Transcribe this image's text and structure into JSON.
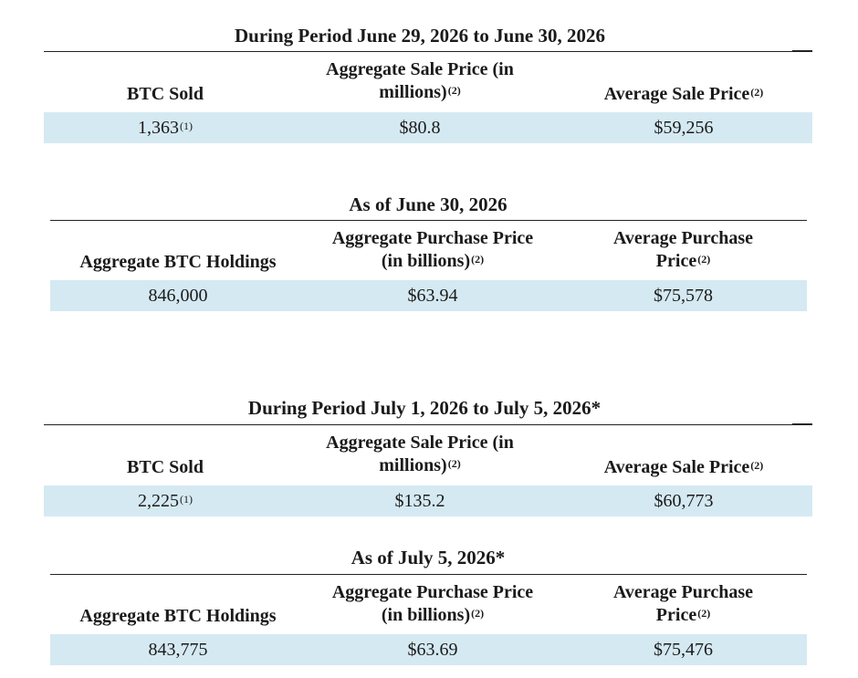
{
  "tables": [
    {
      "title": "During Period June 29, 2026 to June 30, 2026",
      "headers": [
        {
          "lines": [
            "BTC Sold"
          ],
          "note": ""
        },
        {
          "lines": [
            "Aggregate Sale Price (in",
            "millions)"
          ],
          "note": "(2)"
        },
        {
          "lines": [
            "Average Sale Price"
          ],
          "note": "(2)"
        }
      ],
      "values": [
        {
          "text": "1,363",
          "note": "(1)"
        },
        {
          "text": "$80.8",
          "note": ""
        },
        {
          "text": "$59,256",
          "note": ""
        }
      ]
    },
    {
      "title": "As of June 30, 2026",
      "headers": [
        {
          "lines": [
            "Aggregate BTC Holdings"
          ],
          "note": ""
        },
        {
          "lines": [
            "Aggregate Purchase Price",
            "(in billions)"
          ],
          "note": "(2)"
        },
        {
          "lines": [
            "Average Purchase",
            "Price"
          ],
          "note": "(2)"
        }
      ],
      "values": [
        {
          "text": "846,000",
          "note": ""
        },
        {
          "text": "$63.94",
          "note": ""
        },
        {
          "text": "$75,578",
          "note": ""
        }
      ]
    },
    {
      "title": "During Period July 1, 2026 to July 5, 2026*",
      "headers": [
        {
          "lines": [
            "BTC Sold"
          ],
          "note": ""
        },
        {
          "lines": [
            "Aggregate Sale Price (in",
            "millions)"
          ],
          "note": "(2)"
        },
        {
          "lines": [
            "Average Sale Price"
          ],
          "note": "(2)"
        }
      ],
      "values": [
        {
          "text": "2,225",
          "note": "(1)"
        },
        {
          "text": "$135.2",
          "note": ""
        },
        {
          "text": "$60,773",
          "note": ""
        }
      ]
    },
    {
      "title": "As of July 5, 2026*",
      "headers": [
        {
          "lines": [
            "Aggregate BTC Holdings"
          ],
          "note": ""
        },
        {
          "lines": [
            "Aggregate Purchase Price",
            "(in billions)"
          ],
          "note": "(2)"
        },
        {
          "lines": [
            "Average Purchase",
            "Price"
          ],
          "note": "(2)"
        }
      ],
      "values": [
        {
          "text": "843,775",
          "note": ""
        },
        {
          "text": "$63.69",
          "note": ""
        },
        {
          "text": "$75,476",
          "note": ""
        }
      ]
    }
  ]
}
